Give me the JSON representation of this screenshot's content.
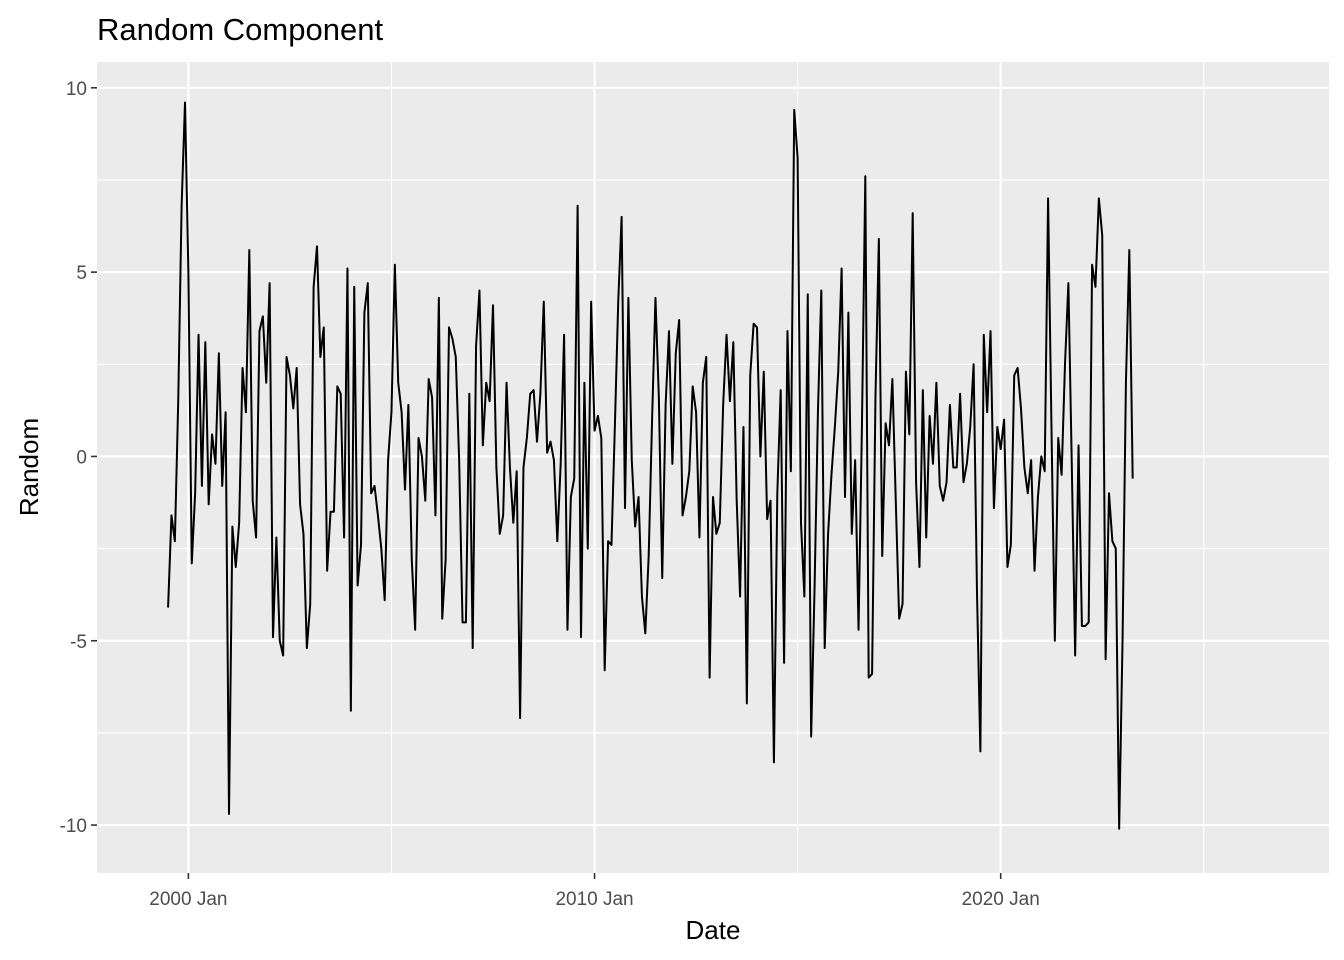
{
  "chart_data": {
    "type": "line",
    "title": "Random Component",
    "xlabel": "Date",
    "ylabel": "Random",
    "x_ticks": [
      {
        "label": "2000 Jan",
        "year": 2000.0
      },
      {
        "label": "2010 Jan",
        "year": 2010.0
      },
      {
        "label": "2020 Jan",
        "year": 2020.0
      }
    ],
    "y_ticks": [
      10,
      5,
      0,
      -5,
      -10
    ],
    "xlim": [
      "1997-10",
      "2028-02"
    ],
    "ylim": [
      -11.3,
      10.7
    ],
    "grid": true,
    "line_color": "#000000",
    "panel_color": "#ebebeb",
    "grid_color": "#ffffff",
    "series": [
      {
        "x_start": "1999-07",
        "frequency": "monthly",
        "values": [
          -4.1,
          -1.6,
          -2.3,
          1.5,
          6.8,
          9.6,
          5.0,
          -2.9,
          -1.0,
          3.3,
          -0.8,
          3.1,
          -1.3,
          0.6,
          -0.2,
          2.8,
          -0.8,
          1.2,
          -9.7,
          -1.9,
          -3.0,
          -1.8,
          2.4,
          1.2,
          5.6,
          -1.2,
          -2.2,
          3.4,
          3.8,
          2.0,
          4.7,
          -4.9,
          -2.2,
          -5.0,
          -5.4,
          2.7,
          2.2,
          1.3,
          2.4,
          -1.3,
          -2.1,
          -5.2,
          -4.0,
          4.6,
          5.7,
          2.7,
          3.5,
          -3.1,
          -1.5,
          -1.5,
          1.9,
          1.7,
          -2.2,
          5.1,
          -6.9,
          4.6,
          -3.5,
          -2.4,
          3.9,
          4.7,
          -1.0,
          -0.8,
          -1.6,
          -2.5,
          -3.9,
          -0.1,
          1.2,
          5.2,
          2.0,
          1.2,
          -0.9,
          1.4,
          -2.8,
          -4.7,
          0.5,
          0.0,
          -1.2,
          2.1,
          1.6,
          -1.6,
          4.3,
          -4.4,
          -2.8,
          3.5,
          3.2,
          2.7,
          -0.1,
          -4.5,
          -4.5,
          1.7,
          -5.2,
          3.0,
          4.5,
          0.3,
          2.0,
          1.5,
          4.1,
          -0.3,
          -2.1,
          -1.6,
          2.0,
          -0.3,
          -1.8,
          -0.4,
          -7.1,
          -0.3,
          0.5,
          1.7,
          1.8,
          0.4,
          1.7,
          4.2,
          0.1,
          0.4,
          -0.1,
          -2.3,
          -0.2,
          3.3,
          -4.7,
          -1.1,
          -0.6,
          6.8,
          -4.9,
          2.0,
          -2.5,
          4.2,
          0.7,
          1.1,
          0.5,
          -5.8,
          -2.3,
          -2.4,
          0.8,
          4.2,
          6.5,
          -1.4,
          4.3,
          -0.1,
          -1.9,
          -1.1,
          -3.8,
          -4.8,
          -2.7,
          1.0,
          4.3,
          1.6,
          -3.3,
          1.4,
          3.4,
          -0.2,
          2.8,
          3.7,
          -1.6,
          -1.1,
          -0.4,
          1.9,
          1.2,
          -2.2,
          2.0,
          2.7,
          -6.0,
          -1.1,
          -2.1,
          -1.8,
          1.4,
          3.3,
          1.5,
          3.1,
          -1.2,
          -3.8,
          0.8,
          -6.7,
          2.2,
          3.6,
          3.5,
          0.0,
          2.3,
          -1.7,
          -1.2,
          -8.3,
          -1.0,
          1.8,
          -5.6,
          3.4,
          -0.4,
          9.4,
          8.1,
          -1.8,
          -3.8,
          4.4,
          -7.6,
          -3.6,
          1.2,
          4.5,
          -5.2,
          -2.1,
          -0.5,
          0.8,
          2.3,
          5.1,
          -1.1,
          3.9,
          -2.1,
          -0.1,
          -4.7,
          0.8,
          7.6,
          -6.0,
          -5.9,
          1.6,
          5.9,
          -2.7,
          0.9,
          0.3,
          2.1,
          -1.2,
          -4.4,
          -4.0,
          2.3,
          0.6,
          6.6,
          -0.7,
          -3.0,
          1.8,
          -2.2,
          1.1,
          -0.2,
          2.0,
          -0.8,
          -1.2,
          -0.7,
          1.4,
          -0.3,
          -0.3,
          1.7,
          -0.7,
          -0.2,
          0.8,
          2.5,
          -3.7,
          -8.0,
          3.3,
          1.2,
          3.4,
          -1.4,
          0.8,
          0.2,
          1.0,
          -3.0,
          -2.4,
          2.2,
          2.4,
          1.3,
          -0.3,
          -1.0,
          -0.1,
          -3.1,
          -1.1,
          0.0,
          -0.4,
          7.0,
          0.8,
          -5.0,
          0.5,
          -0.5,
          2.5,
          4.7,
          -0.2,
          -5.4,
          0.3,
          -4.6,
          -4.6,
          -4.5,
          5.2,
          4.6,
          7.0,
          6.0,
          -5.5,
          -1.0,
          -2.3,
          -2.5,
          -10.1,
          -5.0,
          2.0,
          5.6,
          -0.6
        ]
      }
    ]
  }
}
